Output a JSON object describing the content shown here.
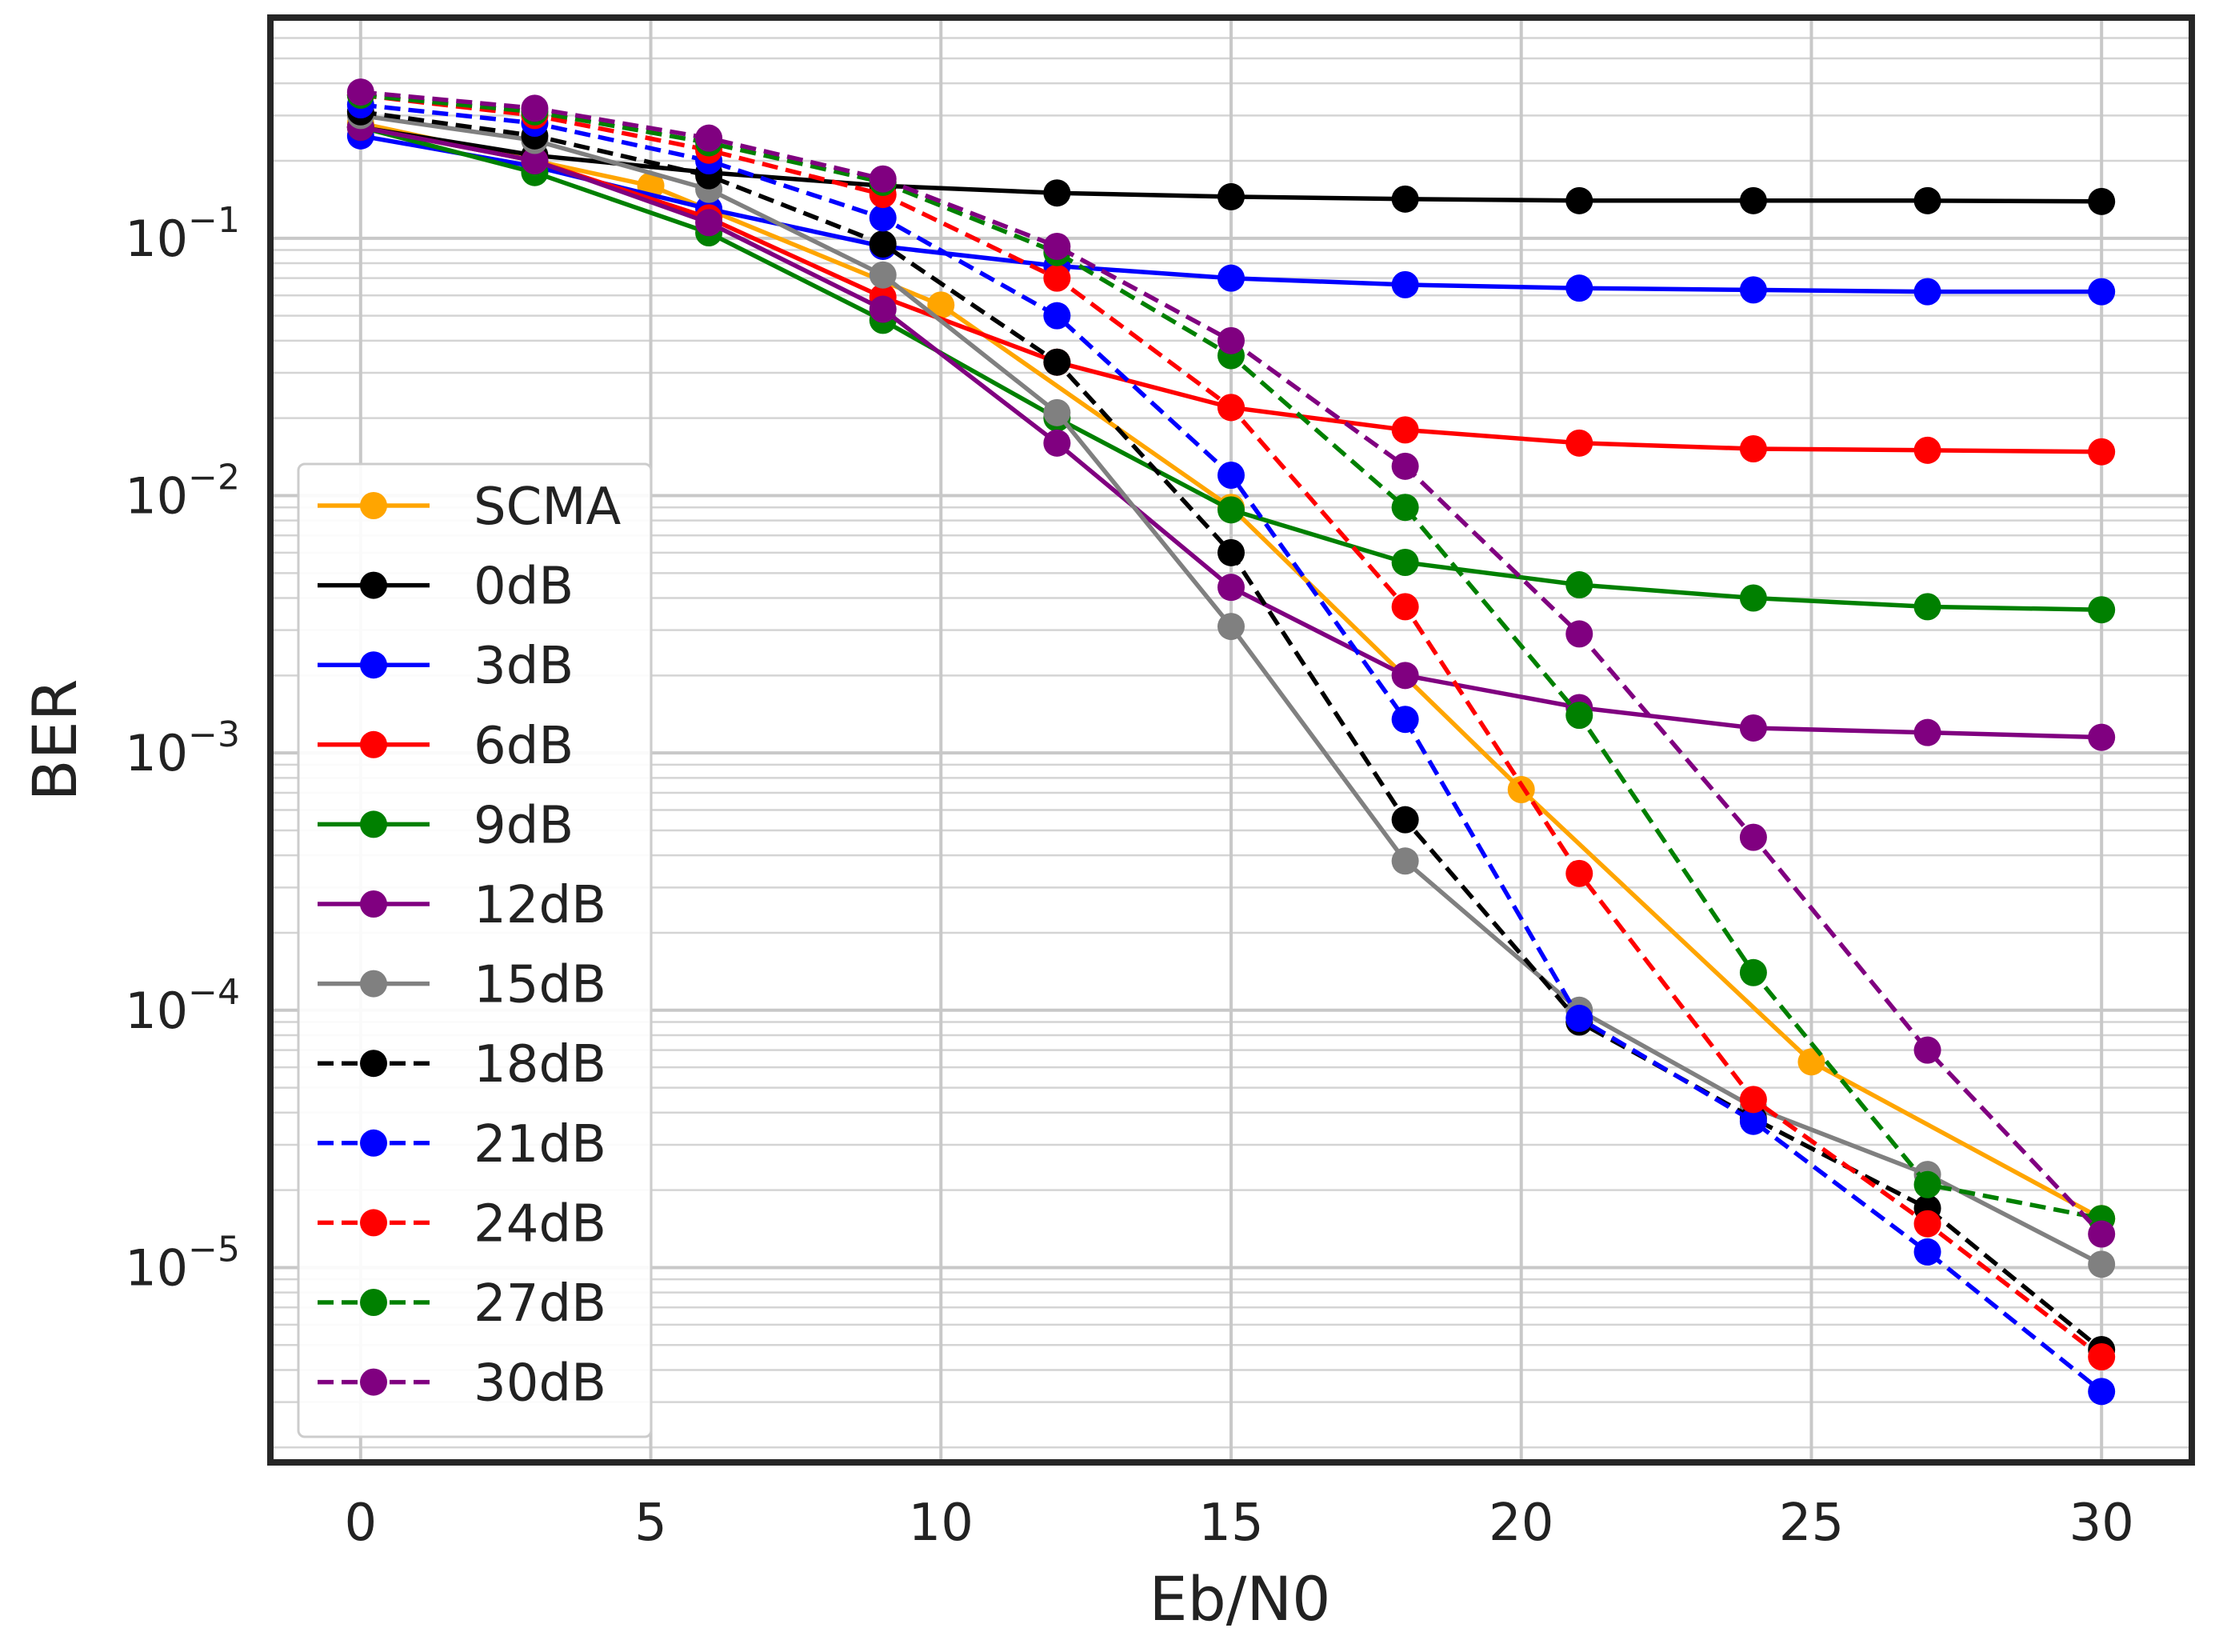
{
  "chart_data": {
    "type": "line",
    "title": "",
    "xlabel": "Eb/N0",
    "ylabel": "BER",
    "xlim": [
      -1.5,
      31.5
    ],
    "ylim": [
      1.8e-06,
      0.7
    ],
    "yscale": "log",
    "grid": true,
    "legend_position": "center-left",
    "x_ticks": [
      0,
      5,
      10,
      15,
      20,
      25,
      30
    ],
    "x_tick_labels": [
      "0",
      "5",
      "10",
      "15",
      "20",
      "25",
      "30"
    ],
    "y_ticks": [
      0.1,
      0.01,
      0.001,
      0.0001,
      1e-05
    ],
    "y_tick_labels": [
      {
        "base": "10",
        "exp": "−1"
      },
      {
        "base": "10",
        "exp": "−2"
      },
      {
        "base": "10",
        "exp": "−3"
      },
      {
        "base": "10",
        "exp": "−4"
      },
      {
        "base": "10",
        "exp": "−5"
      }
    ],
    "series": [
      {
        "name": "SCMA",
        "color": "#FFA500",
        "dash": false,
        "x": [
          0,
          5,
          10,
          15,
          20,
          25,
          30
        ],
        "y": [
          0.28,
          0.16,
          0.055,
          0.009,
          0.00072,
          6.3e-05,
          1.55e-05
        ]
      },
      {
        "name": "0dB",
        "color": "#000000",
        "dash": false,
        "x": [
          0,
          3,
          6,
          9,
          12,
          15,
          18,
          21,
          24,
          27,
          30
        ],
        "y": [
          0.27,
          0.21,
          0.18,
          0.16,
          0.15,
          0.145,
          0.142,
          0.14,
          0.14,
          0.14,
          0.139
        ]
      },
      {
        "name": "3dB",
        "color": "#0000FF",
        "dash": false,
        "x": [
          0,
          3,
          6,
          9,
          12,
          15,
          18,
          21,
          24,
          27,
          30
        ],
        "y": [
          0.25,
          0.19,
          0.13,
          0.093,
          0.078,
          0.07,
          0.066,
          0.064,
          0.063,
          0.062,
          0.062
        ]
      },
      {
        "name": "6dB",
        "color": "#FF0000",
        "dash": false,
        "x": [
          0,
          3,
          6,
          9,
          12,
          15,
          18,
          21,
          24,
          27,
          30
        ],
        "y": [
          0.27,
          0.2,
          0.12,
          0.059,
          0.033,
          0.022,
          0.018,
          0.016,
          0.0152,
          0.015,
          0.0148
        ]
      },
      {
        "name": "9dB",
        "color": "#008000",
        "dash": false,
        "x": [
          0,
          3,
          6,
          9,
          12,
          15,
          18,
          21,
          24,
          27,
          30
        ],
        "y": [
          0.27,
          0.18,
          0.105,
          0.048,
          0.02,
          0.0088,
          0.0055,
          0.0045,
          0.004,
          0.0037,
          0.0036
        ]
      },
      {
        "name": "12dB",
        "color": "#800080",
        "dash": false,
        "x": [
          0,
          3,
          6,
          9,
          12,
          15,
          18,
          21,
          24,
          27,
          30
        ],
        "y": [
          0.27,
          0.2,
          0.115,
          0.053,
          0.016,
          0.0044,
          0.002,
          0.0015,
          0.00125,
          0.0012,
          0.00115
        ]
      },
      {
        "name": "15dB",
        "color": "#808080",
        "dash": false,
        "x": [
          0,
          3,
          6,
          9,
          12,
          15,
          18,
          21,
          24,
          27,
          30
        ],
        "y": [
          0.3,
          0.24,
          0.155,
          0.072,
          0.021,
          0.0031,
          0.00038,
          0.0001,
          4.2e-05,
          2.3e-05,
          1.03e-05
        ]
      },
      {
        "name": "18dB",
        "color": "#000000",
        "dash": true,
        "x": [
          0,
          3,
          6,
          9,
          12,
          15,
          18,
          21,
          24,
          27,
          30
        ],
        "y": [
          0.31,
          0.25,
          0.175,
          0.095,
          0.033,
          0.006,
          0.00055,
          9e-05,
          3.8e-05,
          1.7e-05,
          4.8e-06
        ]
      },
      {
        "name": "21dB",
        "color": "#0000FF",
        "dash": true,
        "x": [
          0,
          3,
          6,
          9,
          12,
          15,
          18,
          21,
          24,
          27,
          30
        ],
        "y": [
          0.33,
          0.28,
          0.2,
          0.12,
          0.05,
          0.012,
          0.00135,
          9.3e-05,
          3.7e-05,
          1.15e-05,
          3.3e-06
        ]
      },
      {
        "name": "24dB",
        "color": "#FF0000",
        "dash": true,
        "x": [
          0,
          3,
          6,
          9,
          12,
          15,
          18,
          21,
          24,
          27,
          30
        ],
        "y": [
          0.36,
          0.3,
          0.22,
          0.148,
          0.07,
          0.022,
          0.0037,
          0.00034,
          4.5e-05,
          1.48e-05,
          4.5e-06
        ]
      },
      {
        "name": "27dB",
        "color": "#008000",
        "dash": true,
        "x": [
          0,
          3,
          6,
          9,
          12,
          15,
          18,
          21,
          24,
          27,
          30
        ],
        "y": [
          0.36,
          0.31,
          0.235,
          0.165,
          0.088,
          0.035,
          0.009,
          0.0014,
          0.00014,
          2.1e-05,
          1.55e-05
        ]
      },
      {
        "name": "30dB",
        "color": "#800080",
        "dash": true,
        "x": [
          0,
          3,
          6,
          9,
          12,
          15,
          18,
          21,
          24,
          27,
          30
        ],
        "y": [
          0.37,
          0.32,
          0.245,
          0.17,
          0.093,
          0.04,
          0.013,
          0.0029,
          0.00047,
          7e-05,
          1.35e-05
        ]
      }
    ]
  }
}
